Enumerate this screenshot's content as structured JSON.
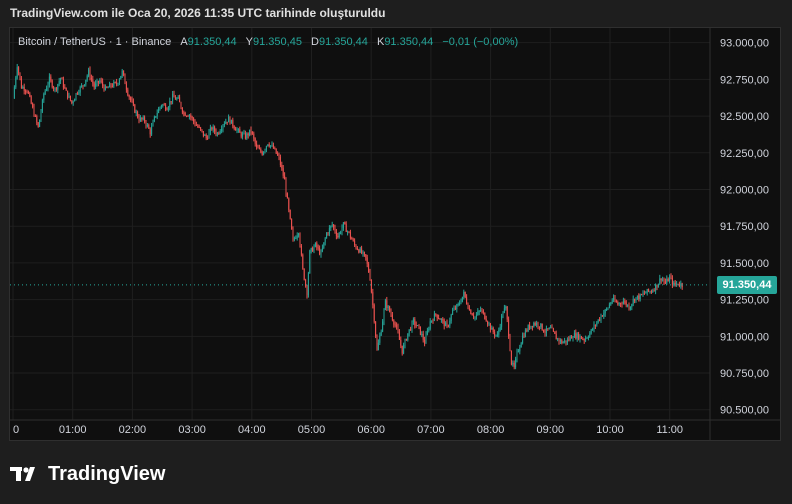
{
  "header": {
    "title": "TradingView.com ile Oca 20, 2026 11:35 UTC tarihinde oluşturuldu"
  },
  "legend": {
    "symbol": "Bitcoin / TetherUS · 1 · Binance",
    "open_label": "A",
    "open": "91.350,44",
    "high_label": "Y",
    "high": "91.350,45",
    "low_label": "D",
    "low": "91.350,44",
    "close_label": "K",
    "close": "91.350,44",
    "change": "−0,01 (−0,00%)"
  },
  "last_price_tag": "91.350,44",
  "brand": {
    "name": "TradingView"
  },
  "colors": {
    "up": "#26a69a",
    "down": "#ef5350",
    "grid": "#1f1f1f",
    "axis_text": "#d1d4dc",
    "last_line": "#26a69a"
  },
  "chart_data": {
    "type": "candlestick",
    "title": "",
    "xlabel": "",
    "ylabel": "",
    "ylim": [
      90430,
      93100
    ],
    "grid": true,
    "legend_position": "top-left",
    "x_ticks": [
      "0",
      "01:00",
      "02:00",
      "03:00",
      "04:00",
      "05:00",
      "06:00",
      "07:00",
      "08:00",
      "09:00",
      "10:00",
      "11:00"
    ],
    "y_ticks": [
      {
        "value": 93000,
        "label": "93.000,00"
      },
      {
        "value": 92750,
        "label": "92.750,00"
      },
      {
        "value": 92500,
        "label": "92.500,00"
      },
      {
        "value": 92250,
        "label": "92.250,00"
      },
      {
        "value": 92000,
        "label": "92.000,00"
      },
      {
        "value": 91750,
        "label": "91.750,00"
      },
      {
        "value": 91500,
        "label": "91.500,00"
      },
      {
        "value": 91250,
        "label": "91.250,00"
      },
      {
        "value": 91000,
        "label": "91.000,00"
      },
      {
        "value": 90750,
        "label": "90.750,00"
      },
      {
        "value": 90500,
        "label": "90.500,00"
      }
    ],
    "last_price": 91350.44,
    "series": [
      {
        "close_path": [
          [
            0,
            92620
          ],
          [
            3,
            92850
          ],
          [
            6,
            92700
          ],
          [
            10,
            92680
          ],
          [
            14,
            92550
          ],
          [
            18,
            92420
          ],
          [
            22,
            92650
          ],
          [
            26,
            92750
          ],
          [
            30,
            92680
          ],
          [
            34,
            92760
          ],
          [
            38,
            92660
          ],
          [
            42,
            92590
          ],
          [
            46,
            92670
          ],
          [
            50,
            92710
          ],
          [
            54,
            92800
          ],
          [
            58,
            92700
          ],
          [
            62,
            92740
          ],
          [
            66,
            92680
          ],
          [
            70,
            92710
          ],
          [
            74,
            92720
          ],
          [
            78,
            92800
          ],
          [
            82,
            92660
          ],
          [
            86,
            92560
          ],
          [
            90,
            92480
          ],
          [
            94,
            92470
          ],
          [
            98,
            92390
          ],
          [
            102,
            92510
          ],
          [
            106,
            92580
          ],
          [
            110,
            92560
          ],
          [
            114,
            92630
          ],
          [
            118,
            92610
          ],
          [
            122,
            92520
          ],
          [
            126,
            92510
          ],
          [
            130,
            92450
          ],
          [
            134,
            92400
          ],
          [
            138,
            92350
          ],
          [
            142,
            92420
          ],
          [
            146,
            92380
          ],
          [
            150,
            92450
          ],
          [
            154,
            92480
          ],
          [
            158,
            92430
          ],
          [
            162,
            92380
          ],
          [
            166,
            92360
          ],
          [
            170,
            92400
          ],
          [
            174,
            92280
          ],
          [
            178,
            92250
          ],
          [
            182,
            92320
          ],
          [
            186,
            92280
          ],
          [
            190,
            92210
          ],
          [
            194,
            92060
          ],
          [
            197,
            91850
          ],
          [
            200,
            91650
          ],
          [
            204,
            91720
          ],
          [
            207,
            91450
          ],
          [
            210,
            91300
          ],
          [
            212,
            91570
          ],
          [
            216,
            91620
          ],
          [
            220,
            91560
          ],
          [
            224,
            91700
          ],
          [
            228,
            91760
          ],
          [
            232,
            91680
          ],
          [
            236,
            91760
          ],
          [
            240,
            91700
          ],
          [
            244,
            91620
          ],
          [
            248,
            91580
          ],
          [
            252,
            91530
          ],
          [
            255,
            91400
          ],
          [
            258,
            91120
          ],
          [
            260,
            90900
          ],
          [
            263,
            91050
          ],
          [
            266,
            91230
          ],
          [
            270,
            91150
          ],
          [
            274,
            91050
          ],
          [
            278,
            90900
          ],
          [
            282,
            91020
          ],
          [
            286,
            91100
          ],
          [
            290,
            91050
          ],
          [
            294,
            90960
          ],
          [
            298,
            91100
          ],
          [
            302,
            91150
          ],
          [
            306,
            91110
          ],
          [
            310,
            91060
          ],
          [
            314,
            91170
          ],
          [
            318,
            91210
          ],
          [
            322,
            91290
          ],
          [
            326,
            91180
          ],
          [
            330,
            91130
          ],
          [
            334,
            91180
          ],
          [
            338,
            91120
          ],
          [
            342,
            91040
          ],
          [
            346,
            91000
          ],
          [
            350,
            91170
          ],
          [
            352,
            91190
          ],
          [
            354,
            91020
          ],
          [
            356,
            90820
          ],
          [
            358,
            90780
          ],
          [
            360,
            90880
          ],
          [
            364,
            91000
          ],
          [
            368,
            91060
          ],
          [
            372,
            91090
          ],
          [
            376,
            91080
          ],
          [
            380,
            91030
          ],
          [
            384,
            91050
          ],
          [
            388,
            90990
          ],
          [
            392,
            90960
          ],
          [
            396,
            90970
          ],
          [
            400,
            91010
          ],
          [
            404,
            91000
          ],
          [
            408,
            90980
          ],
          [
            412,
            91020
          ],
          [
            416,
            91080
          ],
          [
            420,
            91140
          ],
          [
            424,
            91180
          ],
          [
            428,
            91250
          ],
          [
            432,
            91220
          ],
          [
            436,
            91240
          ],
          [
            440,
            91200
          ],
          [
            444,
            91260
          ],
          [
            448,
            91270
          ],
          [
            452,
            91300
          ],
          [
            456,
            91310
          ],
          [
            460,
            91350
          ],
          [
            463,
            91400
          ],
          [
            466,
            91360
          ],
          [
            469,
            91400
          ],
          [
            472,
            91350
          ],
          [
            475,
            91360
          ],
          [
            478,
            91350
          ]
        ]
      }
    ]
  }
}
